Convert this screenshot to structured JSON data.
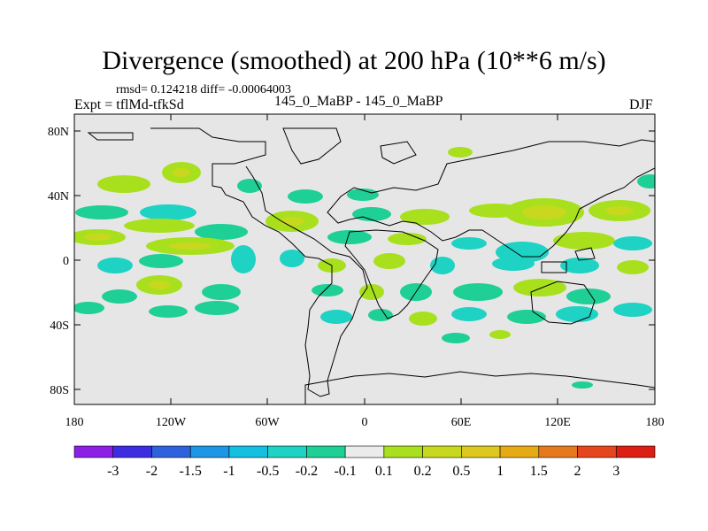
{
  "title": "Divergence (smoothed) at 200 hPa (10**6 m/s)",
  "stats": "rmsd= 0.124218 diff= -0.00064003",
  "expt": "Expt = tflMd-tfkSd",
  "case": "145_0_MaBP - 145_0_MaBP",
  "season": "DJF",
  "map": {
    "background": "#e6e6e6",
    "lat_labels": [
      "80N",
      "40N",
      "0",
      "40S",
      "80S"
    ],
    "lon_labels": [
      "180",
      "120W",
      "60W",
      "0",
      "60E",
      "120E",
      "180"
    ]
  },
  "colorbar": {
    "colors": [
      "#8c1ee6",
      "#3c2ee0",
      "#2e62dc",
      "#1e96e6",
      "#14c0e0",
      "#1ed2c4",
      "#1ecf96",
      "#ebebeb",
      "#a8e01e",
      "#c8d81e",
      "#dcc81e",
      "#e6aa14",
      "#e6781e",
      "#e6461e",
      "#dc1e14"
    ],
    "labels": [
      "-3",
      "-2",
      "-1.5",
      "-1",
      "-0.5",
      "-0.2",
      "-0.1",
      "0.1",
      "0.2",
      "0.5",
      "1",
      "1.5",
      "2",
      "3"
    ]
  }
}
